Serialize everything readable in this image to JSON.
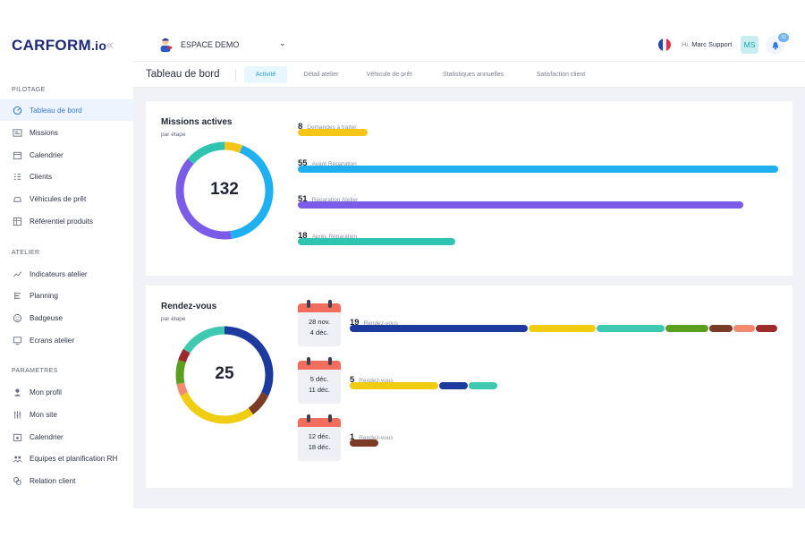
{
  "brand": {
    "logo_text": "CARFORM",
    "logo_suffix": ".io",
    "collapse_icon": "chevron-double-left-icon"
  },
  "sidebar": {
    "sections": [
      {
        "title": "PILOTAGE",
        "items": [
          {
            "label": "Tableau de bord",
            "icon": "dashboard-icon",
            "active": true
          },
          {
            "label": "Missions",
            "icon": "missions-icon"
          },
          {
            "label": "Calendrier",
            "icon": "calendar-icon"
          },
          {
            "label": "Clients",
            "icon": "clients-icon"
          },
          {
            "label": "Véhicules de prêt",
            "icon": "car-icon"
          },
          {
            "label": "Référentiel produits",
            "icon": "products-icon"
          }
        ]
      },
      {
        "title": "ATELIER",
        "items": [
          {
            "label": "Indicateurs atelier",
            "icon": "indicators-icon"
          },
          {
            "label": "Planning",
            "icon": "planning-icon"
          },
          {
            "label": "Badgeuse",
            "icon": "badge-icon"
          },
          {
            "label": "Ecrans atelier",
            "icon": "screen-icon"
          }
        ]
      },
      {
        "title": "PARAMETRES",
        "items": [
          {
            "label": "Mon profil",
            "icon": "profile-icon"
          },
          {
            "label": "Mon site",
            "icon": "site-icon"
          },
          {
            "label": "Calendrier",
            "icon": "calendar-settings-icon"
          },
          {
            "label": "Equipes et planification RH",
            "icon": "teams-icon"
          },
          {
            "label": "Relation client",
            "icon": "customer-relation-icon"
          }
        ]
      }
    ]
  },
  "header": {
    "store_name": "ESPACE DEMO",
    "greeting_hi": "Hi,",
    "user_name": "Marc Support",
    "avatar_initials": "MS",
    "notifications_count": "32"
  },
  "tabs": {
    "page_title": "Tableau de bord",
    "items": [
      {
        "label": "Activité",
        "active": true
      },
      {
        "label": "Détail atelier"
      },
      {
        "label": "Véhicule de prêt"
      },
      {
        "label": "Statistiques annuelles"
      },
      {
        "label": "Satisfaction client"
      }
    ]
  },
  "missions": {
    "title": "Missions actives",
    "subtitle": "par étape",
    "total": "132",
    "rows": [
      {
        "count": 8,
        "label": "Demandes à traiter",
        "color": "#f5c518"
      },
      {
        "count": 55,
        "label": "Avant Réparation",
        "color": "#1eb0f0"
      },
      {
        "count": 51,
        "label": "Réparation Atelier",
        "color": "#7a5ce8"
      },
      {
        "count": 18,
        "label": "Après Réparation",
        "color": "#2ec4b0"
      }
    ]
  },
  "rendezvous": {
    "title": "Rendez-vous",
    "subtitle": "par étape",
    "total": "25",
    "donut": [
      {
        "value": 8,
        "color": "#1d3a9e"
      },
      {
        "value": 2,
        "color": "#7b3b24"
      },
      {
        "value": 7,
        "color": "#f0cd10"
      },
      {
        "value": 1,
        "color": "#f48a6e"
      },
      {
        "value": 2,
        "color": "#5aa01e"
      },
      {
        "value": 1,
        "color": "#9c2b2b"
      },
      {
        "value": 4,
        "color": "#3ec9b0"
      }
    ],
    "groups": [
      {
        "date_line1": "28 nov.",
        "date_line2": "4 déc.",
        "count": 19,
        "label": "Rendez-vous",
        "segments": [
          {
            "value": 6,
            "color": "#1d3a9e"
          },
          {
            "value": 2.3,
            "color": "#f0cd10"
          },
          {
            "value": 2.3,
            "color": "#3ec9b0"
          },
          {
            "value": 1.5,
            "color": "#5aa01e"
          },
          {
            "value": 0.8,
            "color": "#7b3b24"
          },
          {
            "value": 0.75,
            "color": "#f48a6e"
          },
          {
            "value": 0.75,
            "color": "#9c2b2b"
          }
        ]
      },
      {
        "date_line1": "5 déc.",
        "date_line2": "11 déc.",
        "count": 5,
        "label": "Rendez-vous",
        "segments": [
          {
            "value": 3,
            "color": "#f0cd10"
          },
          {
            "value": 1,
            "color": "#1d3a9e"
          },
          {
            "value": 1,
            "color": "#3ec9b0"
          }
        ]
      },
      {
        "date_line1": "12 déc.",
        "date_line2": "18 déc.",
        "count": 1,
        "label": "Rendez-vous",
        "segments": [
          {
            "value": 1,
            "color": "#7b3b24"
          }
        ]
      }
    ]
  }
}
